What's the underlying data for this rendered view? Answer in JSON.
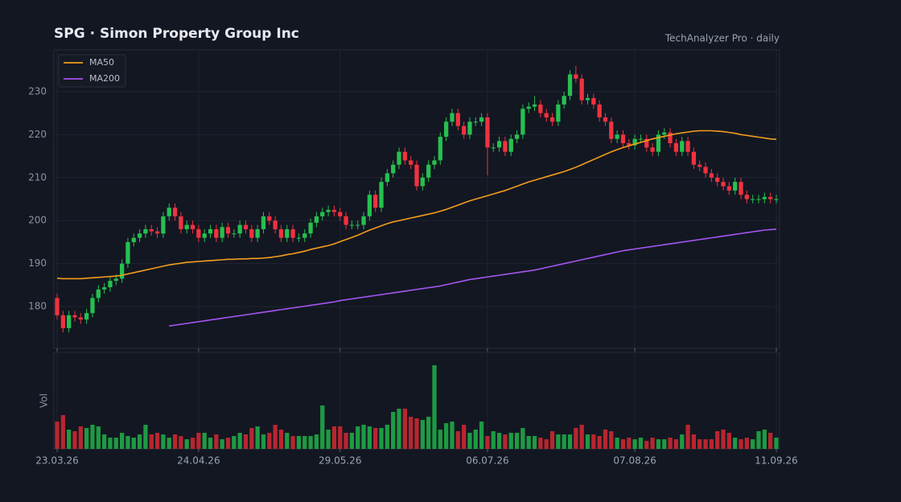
{
  "chart_data": [
    {
      "type": "candlestick",
      "title": "SPG  ·  Simon Property Group Inc",
      "subtitle": "TechAnalyzer Pro · daily",
      "categories": [
        "23.03.26",
        null,
        null,
        null,
        null,
        null,
        null,
        null,
        null,
        null,
        null,
        null,
        null,
        null,
        null,
        null,
        null,
        null,
        null,
        null,
        null,
        null,
        null,
        null,
        "24.04.26",
        null,
        null,
        null,
        null,
        null,
        null,
        null,
        null,
        null,
        null,
        null,
        null,
        null,
        null,
        null,
        null,
        null,
        null,
        null,
        null,
        null,
        null,
        null,
        "29.05.26",
        null,
        null,
        null,
        null,
        null,
        null,
        null,
        null,
        null,
        null,
        null,
        null,
        null,
        null,
        null,
        null,
        null,
        null,
        null,
        null,
        null,
        null,
        null,
        null,
        "06.07.26",
        null,
        null,
        null,
        null,
        null,
        null,
        null,
        null,
        null,
        null,
        null,
        null,
        null,
        null,
        null,
        null,
        null,
        null,
        null,
        null,
        null,
        null,
        null,
        null,
        "07.08.26",
        null,
        null,
        null,
        null,
        null,
        null,
        null,
        null,
        null,
        null,
        null,
        null,
        null,
        null,
        null,
        null,
        null,
        null,
        null,
        null,
        null,
        null,
        null,
        "11.09.26"
      ],
      "open": [
        182,
        178,
        175,
        178,
        177.5,
        177,
        178.5,
        182,
        184,
        184.5,
        186,
        186.5,
        190,
        195,
        196,
        197,
        198,
        197.5,
        197,
        201,
        203,
        201,
        198,
        199,
        198,
        196,
        197,
        198,
        196,
        198.5,
        197,
        197,
        199,
        198,
        196,
        198,
        201,
        200,
        198,
        196,
        198,
        196,
        196,
        197,
        199.5,
        201,
        202,
        202.5,
        202,
        201,
        199,
        199,
        199,
        201,
        206,
        203,
        209,
        211,
        213,
        216,
        214,
        213,
        208,
        210,
        213,
        214,
        219.5,
        223,
        225,
        222,
        220,
        223,
        223,
        224,
        217,
        217,
        218.5,
        216,
        219,
        220,
        226,
        226.5,
        227,
        225,
        224,
        223,
        227,
        229,
        234,
        233,
        228,
        228.5,
        227,
        224,
        223,
        219,
        220,
        218,
        217.5,
        219,
        219,
        217,
        216,
        220,
        220.5,
        218,
        216,
        218.5,
        216,
        213,
        212.5,
        211,
        210,
        209,
        208,
        207,
        209,
        206,
        205,
        205,
        205,
        205.5,
        205
      ],
      "high": [
        183,
        179,
        179,
        179,
        178.5,
        179.5,
        183,
        185,
        185.5,
        187,
        187.5,
        191,
        196,
        197,
        198,
        199,
        199,
        198.5,
        202,
        204,
        204,
        202,
        200,
        200,
        199,
        198,
        199,
        199,
        199.5,
        199.5,
        198,
        200,
        200,
        199,
        199,
        202,
        202,
        201,
        199,
        199,
        199,
        197,
        198,
        200.5,
        202,
        203,
        203.5,
        203.5,
        203,
        202,
        200,
        200,
        202,
        207,
        207,
        210,
        212,
        214,
        217,
        217,
        215,
        214,
        211,
        214,
        215,
        220.5,
        224,
        226,
        226,
        223,
        224,
        224,
        225,
        225,
        218,
        219.5,
        219.5,
        220,
        221,
        227,
        227.5,
        229,
        228,
        226,
        225,
        228,
        230,
        235,
        236,
        234,
        229.5,
        229.5,
        228,
        225,
        224,
        221,
        221,
        219,
        220,
        220,
        220,
        218,
        221,
        221.5,
        221.5,
        219,
        219.5,
        219.5,
        217,
        214,
        213.5,
        212,
        211,
        210,
        209,
        210,
        210,
        207,
        206,
        206,
        206.5,
        206.5,
        206
      ],
      "low": [
        177,
        174,
        174,
        176.5,
        176,
        176,
        177.5,
        181,
        183,
        183.5,
        185,
        185.5,
        189,
        194,
        195,
        196,
        196.5,
        196,
        196,
        200,
        200,
        197,
        197,
        197,
        195,
        195,
        196,
        195,
        195,
        196,
        196,
        196,
        197,
        195,
        195,
        197,
        199,
        197,
        195,
        195,
        195,
        195,
        195,
        196,
        198.5,
        200,
        201,
        201,
        200,
        198,
        198,
        198,
        198,
        200,
        202,
        202,
        208,
        210,
        212,
        213,
        212,
        207,
        207,
        209,
        212,
        213,
        218.5,
        222,
        221,
        219,
        219,
        222,
        222,
        210.5,
        216,
        216,
        215,
        215,
        218,
        219,
        225,
        225.5,
        224,
        223,
        222,
        222,
        226,
        228,
        232,
        227,
        227,
        226,
        223,
        222,
        218,
        218,
        217,
        216.5,
        216.5,
        218,
        216,
        215,
        215,
        219,
        217,
        215,
        215,
        215,
        212,
        211.5,
        210,
        209,
        208,
        207,
        206,
        206,
        205,
        204,
        204,
        204,
        204,
        204,
        204
      ],
      "close": [
        178,
        175,
        178,
        177.5,
        177,
        178.5,
        182,
        184,
        184.5,
        186,
        186.5,
        190,
        195,
        196,
        197,
        198,
        197.5,
        197,
        201,
        203,
        201,
        198,
        199,
        198,
        196,
        197,
        198,
        196,
        198.5,
        197,
        197,
        199,
        198,
        196,
        198,
        201,
        200,
        198,
        196,
        198,
        196,
        196,
        197,
        199.5,
        201,
        202,
        202.5,
        202,
        201,
        199,
        199,
        199,
        201,
        206,
        203,
        209,
        211,
        213,
        216,
        214,
        213,
        208,
        210,
        213,
        214,
        219.5,
        223,
        225,
        222,
        220,
        223,
        223,
        224,
        217,
        217,
        218.5,
        216,
        219,
        220,
        226,
        226.5,
        227,
        225,
        224,
        223,
        227,
        229,
        234,
        233,
        228,
        228.5,
        227,
        224,
        223,
        219,
        220,
        218,
        217.5,
        219,
        219,
        217,
        216,
        220,
        220.5,
        218,
        216,
        218.5,
        216,
        213,
        212.5,
        211,
        210,
        209,
        208,
        207,
        209,
        206,
        205,
        205,
        205,
        205.5,
        205,
        205
      ],
      "up_color": "#26c050",
      "down_color": "#f0323f",
      "series": [
        {
          "name": "MA50",
          "color": "#f29d1c",
          "values": [
            186.6,
            186.5,
            186.5,
            186.5,
            186.5,
            186.6,
            186.7,
            186.8,
            186.9,
            187.0,
            187.1,
            187.3,
            187.6,
            187.9,
            188.2,
            188.5,
            188.8,
            189.1,
            189.4,
            189.7,
            189.9,
            190.1,
            190.3,
            190.4,
            190.5,
            190.6,
            190.7,
            190.8,
            190.9,
            191.0,
            191.0,
            191.1,
            191.1,
            191.2,
            191.2,
            191.3,
            191.4,
            191.6,
            191.8,
            192.1,
            192.3,
            192.6,
            192.9,
            193.3,
            193.6,
            193.9,
            194.2,
            194.6,
            195.1,
            195.6,
            196.1,
            196.6,
            197.2,
            197.8,
            198.3,
            198.8,
            199.3,
            199.7,
            200.0,
            200.3,
            200.6,
            200.9,
            201.2,
            201.5,
            201.8,
            202.2,
            202.6,
            203.1,
            203.6,
            204.1,
            204.6,
            205.0,
            205.4,
            205.8,
            206.2,
            206.6,
            207.0,
            207.5,
            208.0,
            208.5,
            209.0,
            209.4,
            209.8,
            210.2,
            210.6,
            211.0,
            211.4,
            211.9,
            212.4,
            213.0,
            213.6,
            214.2,
            214.8,
            215.4,
            216.0,
            216.5,
            217.0,
            217.4,
            217.8,
            218.2,
            218.6,
            219.0,
            219.3,
            219.6,
            219.9,
            220.2,
            220.4,
            220.6,
            220.8,
            220.9,
            220.9,
            220.9,
            220.8,
            220.7,
            220.5,
            220.3,
            220.0,
            219.8,
            219.6,
            219.4,
            219.2,
            219.0,
            218.9
          ]
        },
        {
          "name": "MA200",
          "color": "#a455f0",
          "values": [
            null,
            null,
            null,
            null,
            null,
            null,
            null,
            null,
            null,
            null,
            null,
            null,
            null,
            null,
            null,
            null,
            null,
            null,
            null,
            175.5,
            175.7,
            175.9,
            176.1,
            176.3,
            176.5,
            176.7,
            176.9,
            177.1,
            177.3,
            177.5,
            177.7,
            177.9,
            178.1,
            178.3,
            178.5,
            178.7,
            178.9,
            179.1,
            179.3,
            179.5,
            179.7,
            179.9,
            180.1,
            180.3,
            180.5,
            180.7,
            180.9,
            181.1,
            181.4,
            181.6,
            181.8,
            182.0,
            182.2,
            182.4,
            182.6,
            182.8,
            183.0,
            183.2,
            183.4,
            183.6,
            183.8,
            184.0,
            184.2,
            184.4,
            184.6,
            184.8,
            185.1,
            185.4,
            185.7,
            186.0,
            186.3,
            186.5,
            186.7,
            186.9,
            187.1,
            187.3,
            187.5,
            187.7,
            187.9,
            188.1,
            188.3,
            188.5,
            188.8,
            189.1,
            189.4,
            189.7,
            190.0,
            190.3,
            190.6,
            190.9,
            191.2,
            191.5,
            191.8,
            192.1,
            192.4,
            192.7,
            193.0,
            193.2,
            193.4,
            193.6,
            193.8,
            194.0,
            194.2,
            194.4,
            194.6,
            194.8,
            195.0,
            195.2,
            195.4,
            195.6,
            195.8,
            196.0,
            196.2,
            196.4,
            196.6,
            196.8,
            197.0,
            197.2,
            197.4,
            197.6,
            197.8,
            197.9,
            198.0
          ]
        }
      ],
      "ylim": [
        170.3,
        239.7
      ],
      "yticks": [
        180,
        190,
        200,
        210,
        220,
        230
      ],
      "grid": true,
      "legend": "upper left"
    },
    {
      "type": "volume",
      "y_label": "Vol",
      "values": [
        1.7,
        2.1,
        1.2,
        1.1,
        1.4,
        1.3,
        1.5,
        1.4,
        0.9,
        0.7,
        0.7,
        1.0,
        0.8,
        0.7,
        0.9,
        1.5,
        0.9,
        1.0,
        0.9,
        0.7,
        0.9,
        0.8,
        0.6,
        0.7,
        1.0,
        1.0,
        0.7,
        0.9,
        0.6,
        0.7,
        0.8,
        1.0,
        0.9,
        1.3,
        1.4,
        0.9,
        1.0,
        1.5,
        1.2,
        1.0,
        0.8,
        0.8,
        0.8,
        0.8,
        0.9,
        2.7,
        1.2,
        1.4,
        1.4,
        1.0,
        1.0,
        1.4,
        1.5,
        1.4,
        1.3,
        1.3,
        1.5,
        2.3,
        2.5,
        2.5,
        2.0,
        1.9,
        1.8,
        2.0,
        5.2,
        1.2,
        1.6,
        1.7,
        1.1,
        1.5,
        1.0,
        1.2,
        1.7,
        0.8,
        1.1,
        1.0,
        0.9,
        1.0,
        1.0,
        1.3,
        0.8,
        0.8,
        0.7,
        0.6,
        1.1,
        0.9,
        0.9,
        0.9,
        1.3,
        1.5,
        0.9,
        0.9,
        0.8,
        1.2,
        1.1,
        0.7,
        0.6,
        0.7,
        0.6,
        0.7,
        0.5,
        0.7,
        0.6,
        0.6,
        0.7,
        0.6,
        0.9,
        1.5,
        0.9,
        0.6,
        0.6,
        0.6,
        1.1,
        1.2,
        1.0,
        0.7,
        0.6,
        0.7,
        0.6,
        1.1,
        1.2,
        1.0,
        0.7
      ],
      "up_color": "#1e9a43",
      "down_color": "#b8262f",
      "ylim": [
        0,
        6
      ]
    }
  ]
}
